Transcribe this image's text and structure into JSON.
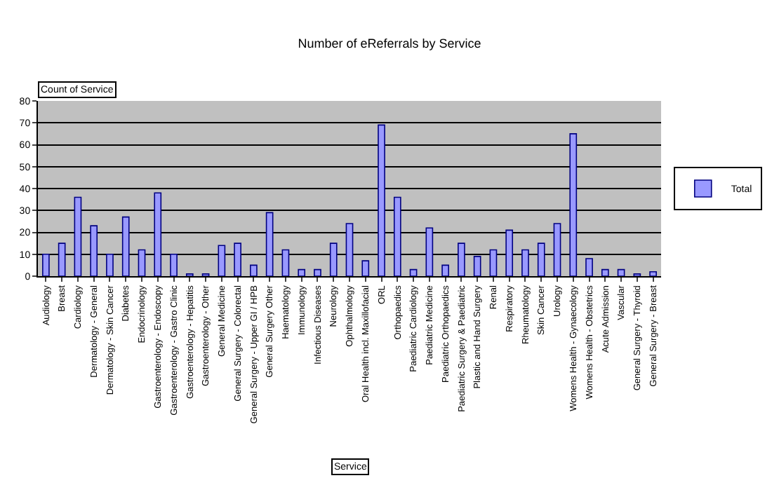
{
  "chart_data": {
    "type": "bar",
    "title": "Number of eReferrals by Service",
    "xlabel": "Service",
    "ylabel": "Count of Service",
    "categories": [
      "Audiology",
      "Breast",
      "Cardiology",
      "Dermatology - General",
      "Dermatology - Skin Cancer",
      "Diabetes",
      "Endocrinology",
      "Gastroenterology - Endoscopy",
      "Gastroenterology - Gastro Clinic",
      "Gastroenterology - Hepatitis",
      "Gastroenterology - Other",
      "General Medicine",
      "General Surgery - Colorectal",
      "General Surgery - Upper GI / HPB",
      "General Surgery Other",
      "Haematology",
      "Immunology",
      "Infectious Diseases",
      "Neurology",
      "Ophthalmology",
      "Oral Health incl. Maxillofacial",
      "ORL",
      "Orthopaedics",
      "Paediatric Cardiology",
      "Paediatric Medicine",
      "Paediatric Orthopaedics",
      "Paediatric Surgery & Paediatric",
      "Plastic and Hand Surgery",
      "Renal",
      "Respiratory",
      "Rheumatology",
      "Skin Cancer",
      "Urology",
      "Womens Health - Gynaecology",
      "Womens Health - Obstetrics",
      "Acute Admission",
      "Vascular",
      "General Surgery - Thyroid",
      "General Surgery - Breast"
    ],
    "series": [
      {
        "name": "Total",
        "color": "#9999ff",
        "values": [
          10,
          15,
          36,
          23,
          10,
          27,
          12,
          38,
          10,
          1,
          1,
          14,
          15,
          5,
          29,
          12,
          3,
          3,
          15,
          24,
          7,
          69,
          36,
          3,
          22,
          5,
          15,
          9,
          12,
          21,
          12,
          15,
          24,
          65,
          8,
          3,
          3,
          1,
          2
        ]
      }
    ],
    "ylim": [
      0,
      80
    ],
    "yticks": [
      0,
      10,
      20,
      30,
      40,
      50,
      60,
      70,
      80
    ],
    "grid": "y",
    "legend": "right"
  }
}
